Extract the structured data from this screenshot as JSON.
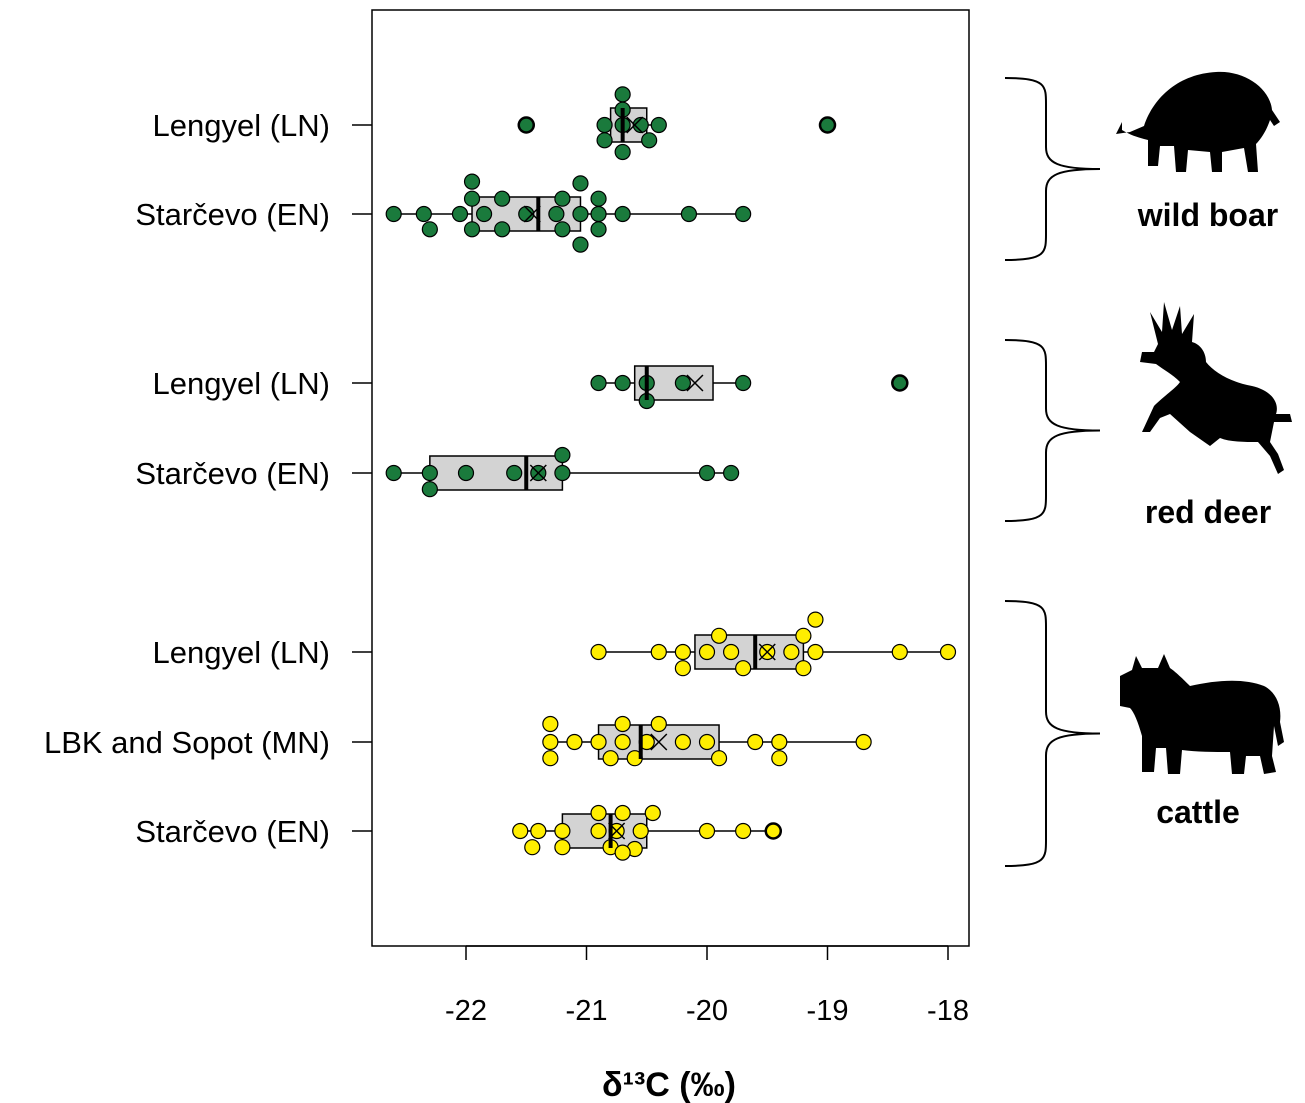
{
  "chart_data": {
    "type": "boxplot",
    "xlabel": "δ¹³C (‰)",
    "xlim": [
      -22.8,
      -17.8
    ],
    "x_ticks": [
      "-22",
      "-21",
      "-20",
      "-19",
      "-18"
    ],
    "groups": [
      {
        "label": "wild boar",
        "icon": "wild-boar-icon",
        "point_color": "#1a7a3c",
        "rows": [
          {
            "label": "Lengyel (LN)",
            "box": {
              "min": -20.8,
              "q1": -20.8,
              "median": -20.7,
              "q3": -20.5,
              "max": -20.4,
              "mean": -20.6
            },
            "outliers": [
              -21.5,
              -19.0
            ],
            "points": [
              [
                -20.7,
                0.34
              ],
              [
                -20.7,
                0.17
              ],
              [
                -20.85,
                0.0
              ],
              [
                -20.7,
                0.0
              ],
              [
                -20.55,
                0.0
              ],
              [
                -20.4,
                0.0
              ],
              [
                -20.85,
                -0.17
              ],
              [
                -20.48,
                -0.17
              ],
              [
                -20.7,
                -0.3
              ]
            ]
          },
          {
            "label": "Starčevo (EN)",
            "box": {
              "min": -22.6,
              "q1": -21.95,
              "median": -21.4,
              "q3": -21.05,
              "max": -19.7,
              "mean": -21.45
            },
            "outliers": [],
            "points": [
              [
                -21.95,
                0.36
              ],
              [
                -21.05,
                0.34
              ],
              [
                -21.95,
                0.17
              ],
              [
                -21.7,
                0.17
              ],
              [
                -21.2,
                0.17
              ],
              [
                -20.9,
                0.17
              ],
              [
                -22.6,
                0.0
              ],
              [
                -22.35,
                0.0
              ],
              [
                -22.05,
                0.0
              ],
              [
                -21.85,
                0.0
              ],
              [
                -21.5,
                0.0
              ],
              [
                -21.25,
                0.0
              ],
              [
                -21.05,
                0.0
              ],
              [
                -20.9,
                0.0
              ],
              [
                -20.7,
                0.0
              ],
              [
                -20.15,
                0.0
              ],
              [
                -19.7,
                0.0
              ],
              [
                -22.3,
                -0.17
              ],
              [
                -21.95,
                -0.17
              ],
              [
                -21.7,
                -0.17
              ],
              [
                -21.2,
                -0.17
              ],
              [
                -20.9,
                -0.17
              ],
              [
                -21.05,
                -0.34
              ]
            ]
          }
        ]
      },
      {
        "label": "red deer",
        "icon": "red-deer-icon",
        "point_color": "#1a7a3c",
        "rows": [
          {
            "label": "Lengyel (LN)",
            "box": {
              "min": -20.9,
              "q1": -20.6,
              "median": -20.5,
              "q3": -19.95,
              "max": -19.7,
              "mean": -20.1
            },
            "outliers": [
              -18.4
            ],
            "points": [
              [
                -20.9,
                0.0
              ],
              [
                -20.7,
                0.0
              ],
              [
                -20.5,
                0.0
              ],
              [
                -20.2,
                0.0
              ],
              [
                -19.7,
                0.0
              ],
              [
                -20.5,
                -0.2
              ]
            ]
          },
          {
            "label": "Starčevo (EN)",
            "box": {
              "min": -22.6,
              "q1": -22.3,
              "median": -21.5,
              "q3": -21.2,
              "max": -19.8,
              "mean": -21.4
            },
            "outliers": [],
            "points": [
              [
                -21.2,
                0.2
              ],
              [
                -22.6,
                0.0
              ],
              [
                -22.3,
                0.0
              ],
              [
                -22.0,
                0.0
              ],
              [
                -21.6,
                0.0
              ],
              [
                -21.4,
                0.0
              ],
              [
                -21.2,
                0.0
              ],
              [
                -20.0,
                0.0
              ],
              [
                -19.8,
                0.0
              ],
              [
                -22.3,
                -0.18
              ]
            ]
          }
        ]
      },
      {
        "label": "cattle",
        "icon": "cattle-icon",
        "point_color": "#ffee00",
        "rows": [
          {
            "label": "Lengyel (LN)",
            "box": {
              "min": -20.9,
              "q1": -20.1,
              "median": -19.6,
              "q3": -19.2,
              "max": -18.0,
              "mean": -19.5
            },
            "outliers": [],
            "points": [
              [
                -19.1,
                0.36
              ],
              [
                -19.9,
                0.18
              ],
              [
                -19.2,
                0.18
              ],
              [
                -20.9,
                0.0
              ],
              [
                -20.4,
                0.0
              ],
              [
                -20.2,
                0.0
              ],
              [
                -20.0,
                0.0
              ],
              [
                -19.8,
                0.0
              ],
              [
                -19.5,
                0.0
              ],
              [
                -19.3,
                0.0
              ],
              [
                -19.1,
                0.0
              ],
              [
                -18.4,
                0.0
              ],
              [
                -18.0,
                0.0
              ],
              [
                -20.2,
                -0.18
              ],
              [
                -19.7,
                -0.18
              ],
              [
                -19.2,
                -0.18
              ]
            ]
          },
          {
            "label": "LBK and Sopot (MN)",
            "box": {
              "min": -21.3,
              "q1": -20.9,
              "median": -20.55,
              "q3": -19.9,
              "max": -18.7,
              "mean": -20.4
            },
            "outliers": [],
            "points": [
              [
                -21.3,
                0.2
              ],
              [
                -20.7,
                0.2
              ],
              [
                -20.4,
                0.2
              ],
              [
                -21.3,
                0.0
              ],
              [
                -21.1,
                0.0
              ],
              [
                -20.9,
                0.0
              ],
              [
                -20.7,
                0.0
              ],
              [
                -20.5,
                0.0
              ],
              [
                -20.2,
                0.0
              ],
              [
                -20.0,
                0.0
              ],
              [
                -19.6,
                0.0
              ],
              [
                -19.4,
                0.0
              ],
              [
                -18.7,
                0.0
              ],
              [
                -21.3,
                -0.18
              ],
              [
                -20.8,
                -0.18
              ],
              [
                -20.6,
                -0.18
              ],
              [
                -19.9,
                -0.18
              ],
              [
                -19.4,
                -0.18
              ]
            ]
          },
          {
            "label": "Starčevo (EN)",
            "box": {
              "min": -21.55,
              "q1": -21.2,
              "median": -20.8,
              "q3": -20.5,
              "max": -19.45,
              "mean": -20.75
            },
            "outliers": [
              -19.45
            ],
            "points": [
              [
                -20.9,
                0.2
              ],
              [
                -20.7,
                0.2
              ],
              [
                -20.45,
                0.2
              ],
              [
                -21.55,
                0.0
              ],
              [
                -21.4,
                0.0
              ],
              [
                -21.2,
                0.0
              ],
              [
                -20.9,
                0.0
              ],
              [
                -20.75,
                0.0
              ],
              [
                -20.55,
                0.0
              ],
              [
                -20.0,
                0.0
              ],
              [
                -19.7,
                0.0
              ],
              [
                -21.45,
                -0.18
              ],
              [
                -21.2,
                -0.18
              ],
              [
                -20.8,
                -0.18
              ],
              [
                -20.6,
                -0.2
              ],
              [
                -20.7,
                -0.24
              ]
            ]
          }
        ]
      }
    ]
  }
}
